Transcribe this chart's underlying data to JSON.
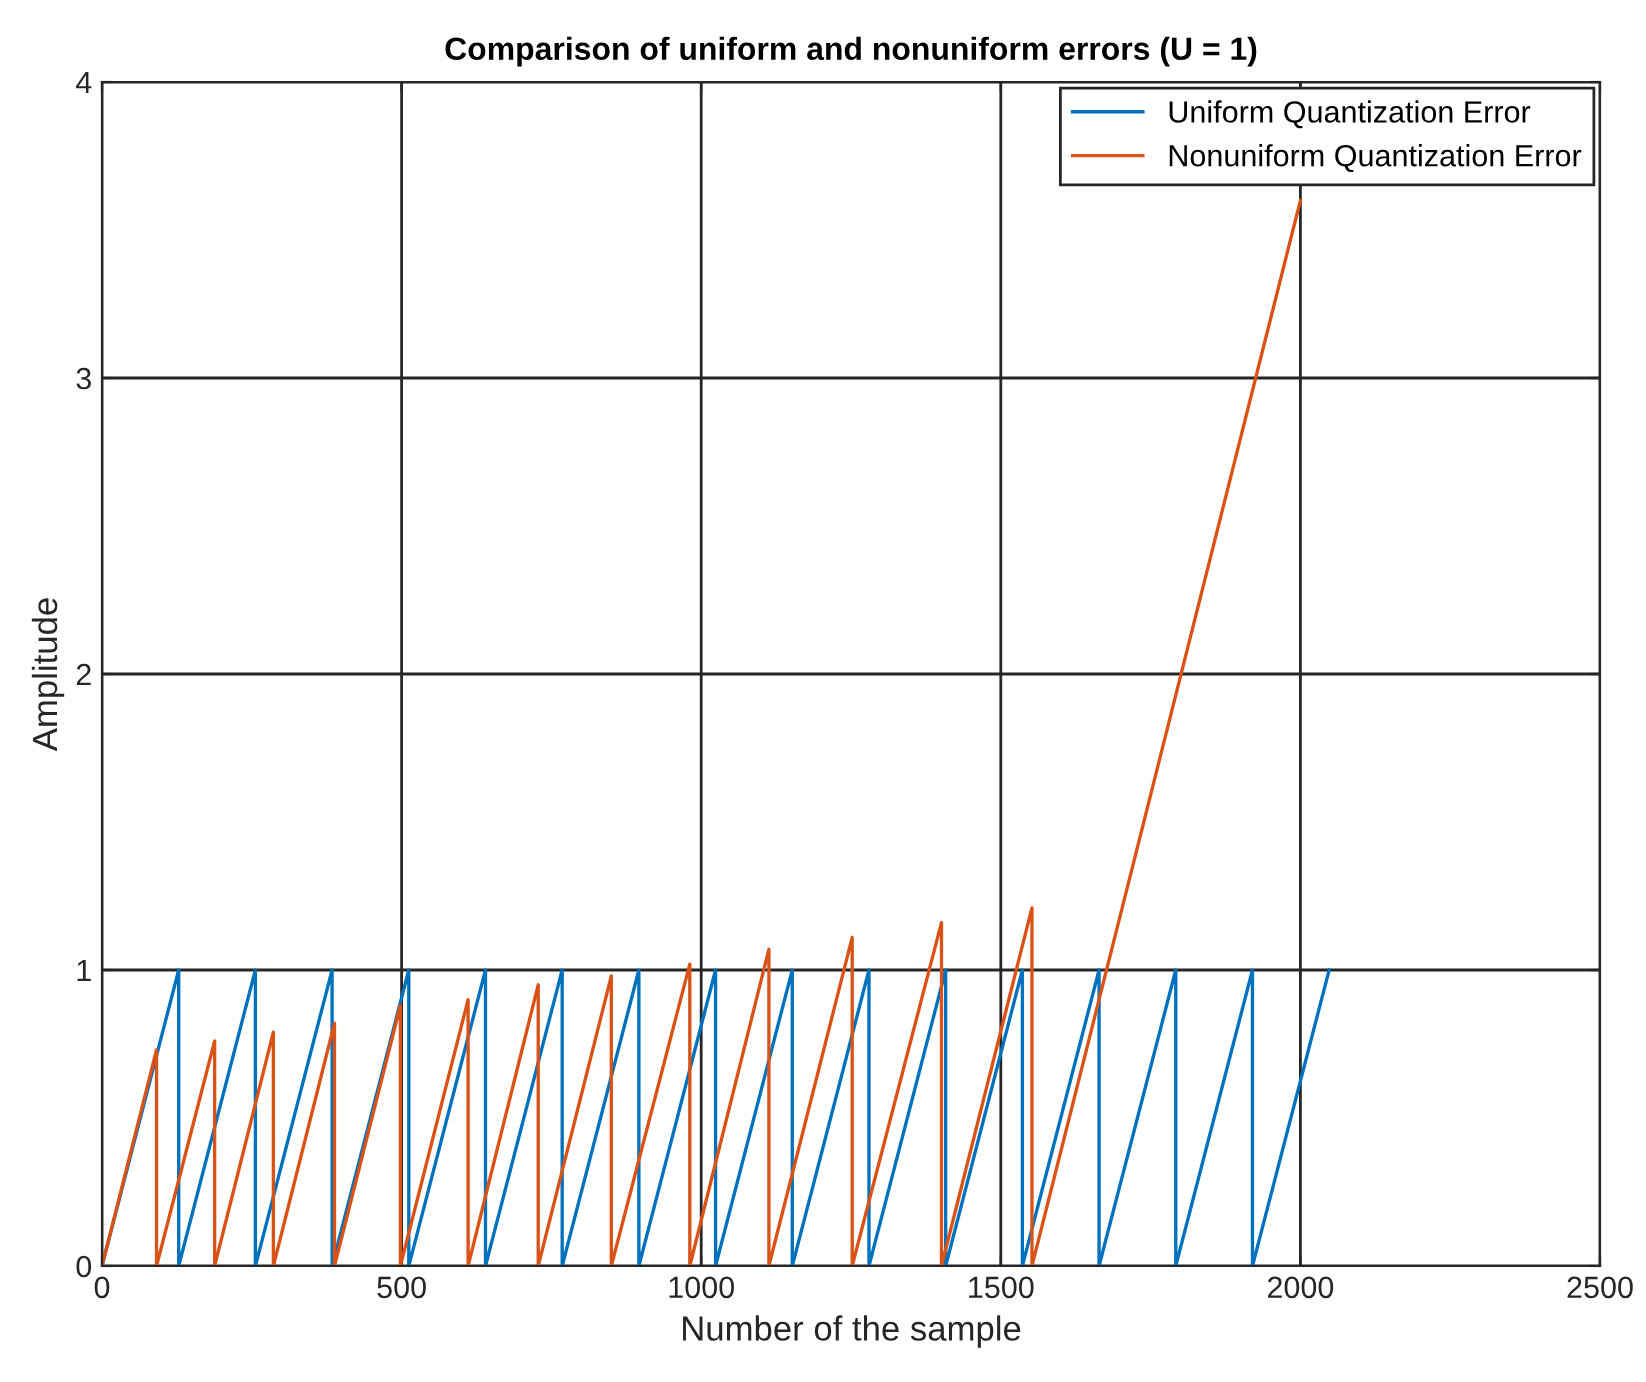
{
  "chart_data": {
    "type": "line",
    "title": "Comparison of uniform and nonuniform errors (U = 1)",
    "xlabel": "Number of the sample",
    "ylabel": "Amplitude",
    "xlim": [
      0,
      2500
    ],
    "xticks": [
      0,
      500,
      1000,
      1500,
      2000,
      2500
    ],
    "ylim": [
      0,
      4
    ],
    "yticks": [
      0,
      1,
      2,
      3,
      4
    ],
    "grid": true,
    "legend": "top right",
    "marker": "none",
    "line_style": "solid",
    "series": [
      {
        "name": "Uniform Quantization Error",
        "color": "#0072bd",
        "x": [
          0,
          128,
          128,
          256,
          256,
          384,
          384,
          512,
          512,
          640,
          640,
          768,
          768,
          896,
          896,
          1024,
          1024,
          1152,
          1152,
          1280,
          1280,
          1408,
          1408,
          1536,
          1536,
          1664,
          1664,
          1792,
          1792,
          1920,
          1920,
          2048
        ],
        "values": [
          0,
          1,
          0,
          1,
          0,
          1,
          0,
          1,
          0,
          1,
          0,
          1,
          0,
          1,
          0,
          1,
          0,
          1,
          0,
          1,
          0,
          1,
          0,
          1,
          0,
          1,
          0,
          1,
          0,
          1,
          0,
          1
        ]
      },
      {
        "name": "Nonuniform Quantization Error",
        "color": "#d95319",
        "x": [
          0,
          91,
          91,
          188,
          188,
          286,
          286,
          388,
          388,
          498,
          498,
          611,
          611,
          728,
          728,
          850,
          850,
          981,
          981,
          1113,
          1113,
          1252,
          1252,
          1401,
          1401,
          1552,
          1552,
          2000
        ],
        "values": [
          0,
          0.73,
          0,
          0.76,
          0,
          0.79,
          0,
          0.82,
          0,
          0.88,
          0,
          0.9,
          0,
          0.95,
          0,
          0.98,
          0,
          1.02,
          0,
          1.07,
          0,
          1.11,
          0,
          1.16,
          0,
          1.21,
          0,
          3.6
        ]
      }
    ]
  }
}
